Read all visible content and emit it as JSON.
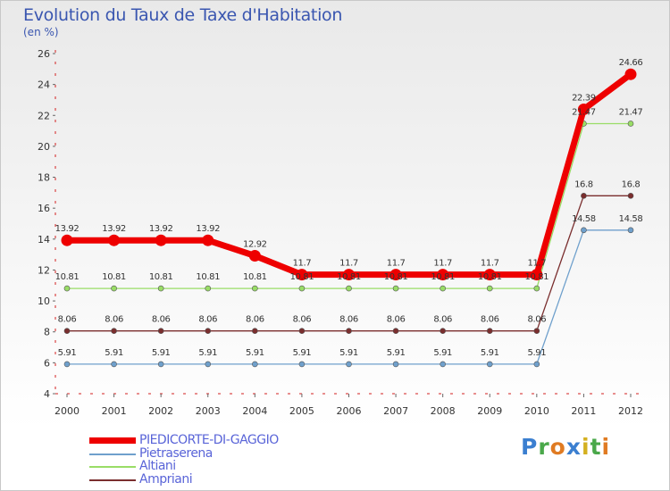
{
  "header": {
    "title": "Evolution du Taux de Taxe d'Habitation",
    "subtitle": "(en %)"
  },
  "logo": {
    "text": "Proxiti"
  },
  "colors": {
    "axis": "#d42020",
    "tick_text": "#333333",
    "label_text": "#333333"
  },
  "chart_data": {
    "type": "line",
    "title": "Evolution du Taux de Taxe d'Habitation",
    "ylabel": "(en %)",
    "xlabel": "",
    "ylim": [
      4,
      26
    ],
    "yticks": [
      "4",
      "6",
      "8",
      "10",
      "12",
      "14",
      "16",
      "18",
      "20",
      "22",
      "24",
      "26"
    ],
    "x": [
      "2000",
      "2001",
      "2002",
      "2003",
      "2004",
      "2005",
      "2006",
      "2007",
      "2008",
      "2009",
      "2010",
      "2011",
      "2012"
    ],
    "series": [
      {
        "name": "PIEDICORTE-DI-GAGGIO",
        "color": "#ee0000",
        "values": [
          13.92,
          13.92,
          13.92,
          13.92,
          12.92,
          11.7,
          11.7,
          11.7,
          11.7,
          11.7,
          11.7,
          22.39,
          24.66
        ],
        "labels": [
          "13.92",
          "13.92",
          "13.92",
          "13.92",
          "12.92",
          "11.7",
          "11.7",
          "11.7",
          "11.7",
          "11.7",
          "11.7",
          "22.39",
          "24.66"
        ]
      },
      {
        "name": "Pietraserena",
        "color": "#6fa0cc",
        "values": [
          5.91,
          5.91,
          5.91,
          5.91,
          5.91,
          5.91,
          5.91,
          5.91,
          5.91,
          5.91,
          5.91,
          14.58,
          14.58
        ],
        "labels": [
          "5.91",
          "5.91",
          "5.91",
          "5.91",
          "5.91",
          "5.91",
          "5.91",
          "5.91",
          "5.91",
          "5.91",
          "5.91",
          "14.58",
          "14.58"
        ]
      },
      {
        "name": "Altiani",
        "color": "#99dd66",
        "values": [
          10.81,
          10.81,
          10.81,
          10.81,
          10.81,
          10.81,
          10.81,
          10.81,
          10.81,
          10.81,
          10.81,
          21.47,
          21.47
        ],
        "labels": [
          "10.81",
          "10.81",
          "10.81",
          "10.81",
          "10.81",
          "10.81",
          "10.81",
          "10.81",
          "10.81",
          "10.81",
          "10.81",
          "21.47",
          "21.47"
        ]
      },
      {
        "name": "Ampriani",
        "color": "#7a2e2e",
        "values": [
          8.06,
          8.06,
          8.06,
          8.06,
          8.06,
          8.06,
          8.06,
          8.06,
          8.06,
          8.06,
          8.06,
          16.8,
          16.8
        ],
        "labels": [
          "8.06",
          "8.06",
          "8.06",
          "8.06",
          "8.06",
          "8.06",
          "8.06",
          "8.06",
          "8.06",
          "8.06",
          "8.06",
          "16.8",
          "16.8"
        ]
      }
    ],
    "legend": [
      "PIEDICORTE-DI-GAGGIO",
      "Pietraserena",
      "Altiani",
      "Ampriani"
    ]
  }
}
